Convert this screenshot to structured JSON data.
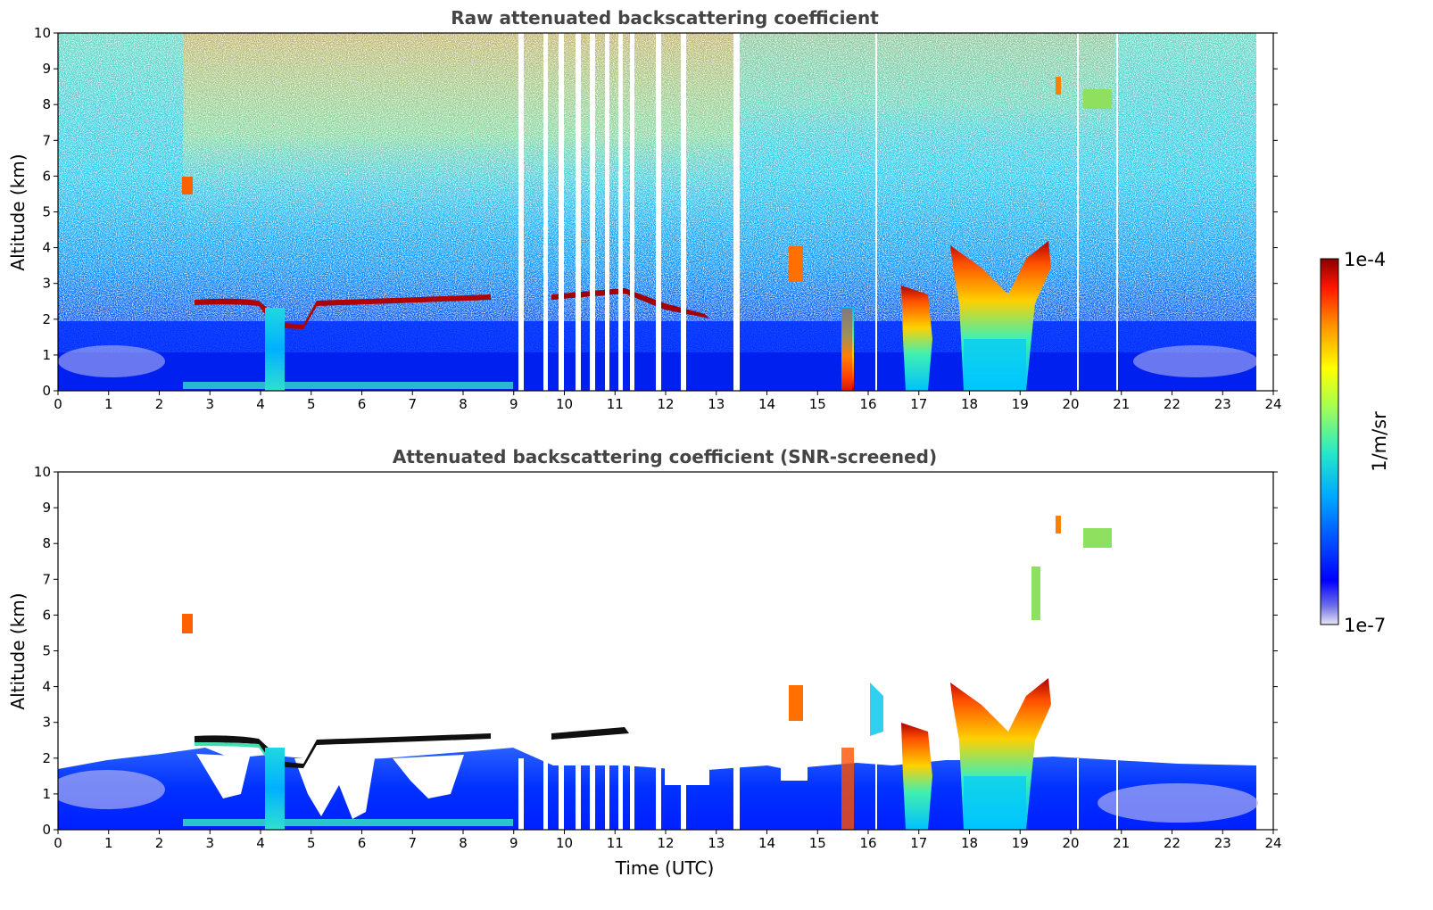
{
  "chart_data": [
    {
      "type": "heatmap",
      "title": "Raw attenuated backscattering coefficient",
      "xlabel": "",
      "ylabel": "Altitude (km)",
      "xlim": [
        0,
        24
      ],
      "ylim": [
        0,
        10
      ],
      "xticks": [
        0,
        1,
        2,
        3,
        4,
        5,
        6,
        7,
        8,
        9,
        10,
        11,
        12,
        13,
        14,
        15,
        16,
        17,
        18,
        19,
        20,
        21,
        22,
        23,
        24
      ],
      "yticks": [
        0,
        1,
        2,
        3,
        4,
        5,
        6,
        7,
        8,
        9,
        10
      ],
      "data_extent_hours": [
        0,
        23.7
      ],
      "missing_data_time_gaps_utc": [
        9.15,
        9.65,
        9.85,
        10.2,
        10.5,
        10.75,
        11.0,
        11.3,
        11.85,
        12.3,
        13.45
      ],
      "features": [
        {
          "kind": "cloud_layer",
          "x": [
            2.7,
            8.6
          ],
          "altitude_km": 2.6
        },
        {
          "kind": "cloud_layer",
          "x": [
            9.6,
            12.7
          ],
          "altitude_km": 2.5
        },
        {
          "kind": "precipitation",
          "x": [
            4.2,
            4.7
          ],
          "altitude_km": [
            0,
            2.3
          ]
        },
        {
          "kind": "precipitation",
          "x": [
            15.5,
            15.8
          ],
          "altitude_km": [
            0,
            2.5
          ]
        },
        {
          "kind": "convective_cloud",
          "x": [
            16.7,
            17.3
          ],
          "altitude_km": [
            0,
            3.0
          ]
        },
        {
          "kind": "convective_cloud",
          "x": [
            17.8,
            19.6
          ],
          "altitude_km": [
            0,
            4.2
          ]
        },
        {
          "kind": "elevated_aerosol",
          "x": [
            2.5,
            2.7
          ],
          "altitude_km": 5.7
        },
        {
          "kind": "elevated_aerosol",
          "x": [
            20.3,
            20.9
          ],
          "altitude_km": 8.1
        },
        {
          "kind": "surface_layer",
          "x": [
            0,
            23.7
          ],
          "altitude_km": [
            0,
            1.5
          ]
        }
      ]
    },
    {
      "type": "heatmap",
      "title": "Attenuated backscattering coefficient (SNR-screened)",
      "xlabel": "Time (UTC)",
      "ylabel": "Altitude (km)",
      "xlim": [
        0,
        24
      ],
      "ylim": [
        0,
        10
      ],
      "xticks": [
        0,
        1,
        2,
        3,
        4,
        5,
        6,
        7,
        8,
        9,
        10,
        11,
        12,
        13,
        14,
        15,
        16,
        17,
        18,
        19,
        20,
        21,
        22,
        23,
        24
      ],
      "yticks": [
        0,
        1,
        2,
        3,
        4,
        5,
        6,
        7,
        8,
        9,
        10
      ],
      "data_extent_hours": [
        0,
        23.7
      ],
      "features": [
        {
          "kind": "boundary_layer",
          "x": [
            0,
            23.7
          ],
          "altitude_km": [
            0,
            1.8
          ]
        },
        {
          "kind": "cloud_layer",
          "x": [
            2.7,
            8.6
          ],
          "altitude_km": 2.6
        },
        {
          "kind": "convective_cloud",
          "x": [
            17.8,
            19.6
          ],
          "altitude_km": [
            0,
            4.2
          ]
        },
        {
          "kind": "elevated_aerosol",
          "x": [
            2.5,
            2.7
          ],
          "altitude_km": 5.7
        },
        {
          "kind": "elevated_aerosol",
          "x": [
            20.3,
            20.9
          ],
          "altitude_km": 8.1
        }
      ]
    }
  ],
  "colorbar": {
    "label": "1/m/sr",
    "max_label": "1e-4",
    "min_label": "1e-7",
    "range": [
      1e-07,
      0.0001
    ],
    "scale": "log",
    "colormap": "jet"
  }
}
